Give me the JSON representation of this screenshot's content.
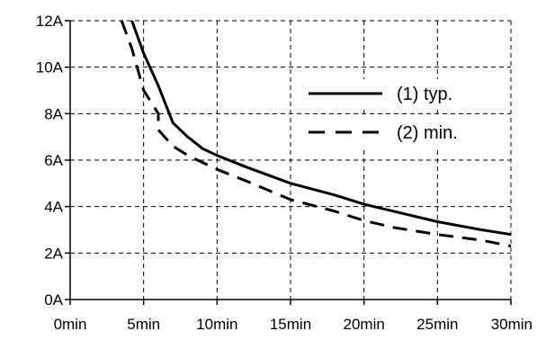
{
  "chart_data": {
    "type": "line",
    "title": "",
    "xlabel": "",
    "ylabel": "",
    "xlim": [
      0,
      30
    ],
    "ylim": [
      0,
      12
    ],
    "x_ticks": [
      0,
      5,
      10,
      15,
      20,
      25,
      30
    ],
    "x_tick_labels": [
      "0min",
      "5min",
      "10min",
      "15min",
      "20min",
      "25min",
      "30min"
    ],
    "y_ticks": [
      0,
      2,
      4,
      6,
      8,
      10,
      12
    ],
    "y_tick_labels": [
      "0A",
      "2A",
      "4A",
      "6A",
      "8A",
      "10A",
      "12A"
    ],
    "grid": true,
    "legend_position": "right",
    "series": [
      {
        "name": "(1) typ.",
        "style": "solid",
        "color": "#000000",
        "points": [
          [
            4.2,
            12.0
          ],
          [
            5.0,
            10.6
          ],
          [
            6.0,
            9.2
          ],
          [
            7.0,
            7.6
          ],
          [
            8.0,
            7.0
          ],
          [
            9.0,
            6.5
          ],
          [
            10.0,
            6.2
          ],
          [
            12.0,
            5.7
          ],
          [
            15.0,
            5.0
          ],
          [
            18.0,
            4.5
          ],
          [
            20.0,
            4.1
          ],
          [
            22.0,
            3.8
          ],
          [
            25.0,
            3.35
          ],
          [
            28.0,
            3.0
          ],
          [
            30.0,
            2.8
          ]
        ]
      },
      {
        "name": "(2) min.",
        "style": "dashed",
        "color": "#000000",
        "points": [
          [
            3.5,
            12.0
          ],
          [
            4.2,
            10.8
          ],
          [
            5.0,
            9.0
          ],
          [
            6.0,
            8.0
          ],
          [
            6.0,
            7.3
          ],
          [
            7.0,
            6.6
          ],
          [
            8.0,
            6.2
          ],
          [
            10.0,
            5.6
          ],
          [
            12.0,
            5.1
          ],
          [
            15.0,
            4.3
          ],
          [
            18.0,
            3.8
          ],
          [
            20.0,
            3.4
          ],
          [
            22.0,
            3.1
          ],
          [
            25.0,
            2.8
          ],
          [
            28.0,
            2.55
          ],
          [
            30.0,
            2.3
          ]
        ]
      }
    ]
  }
}
